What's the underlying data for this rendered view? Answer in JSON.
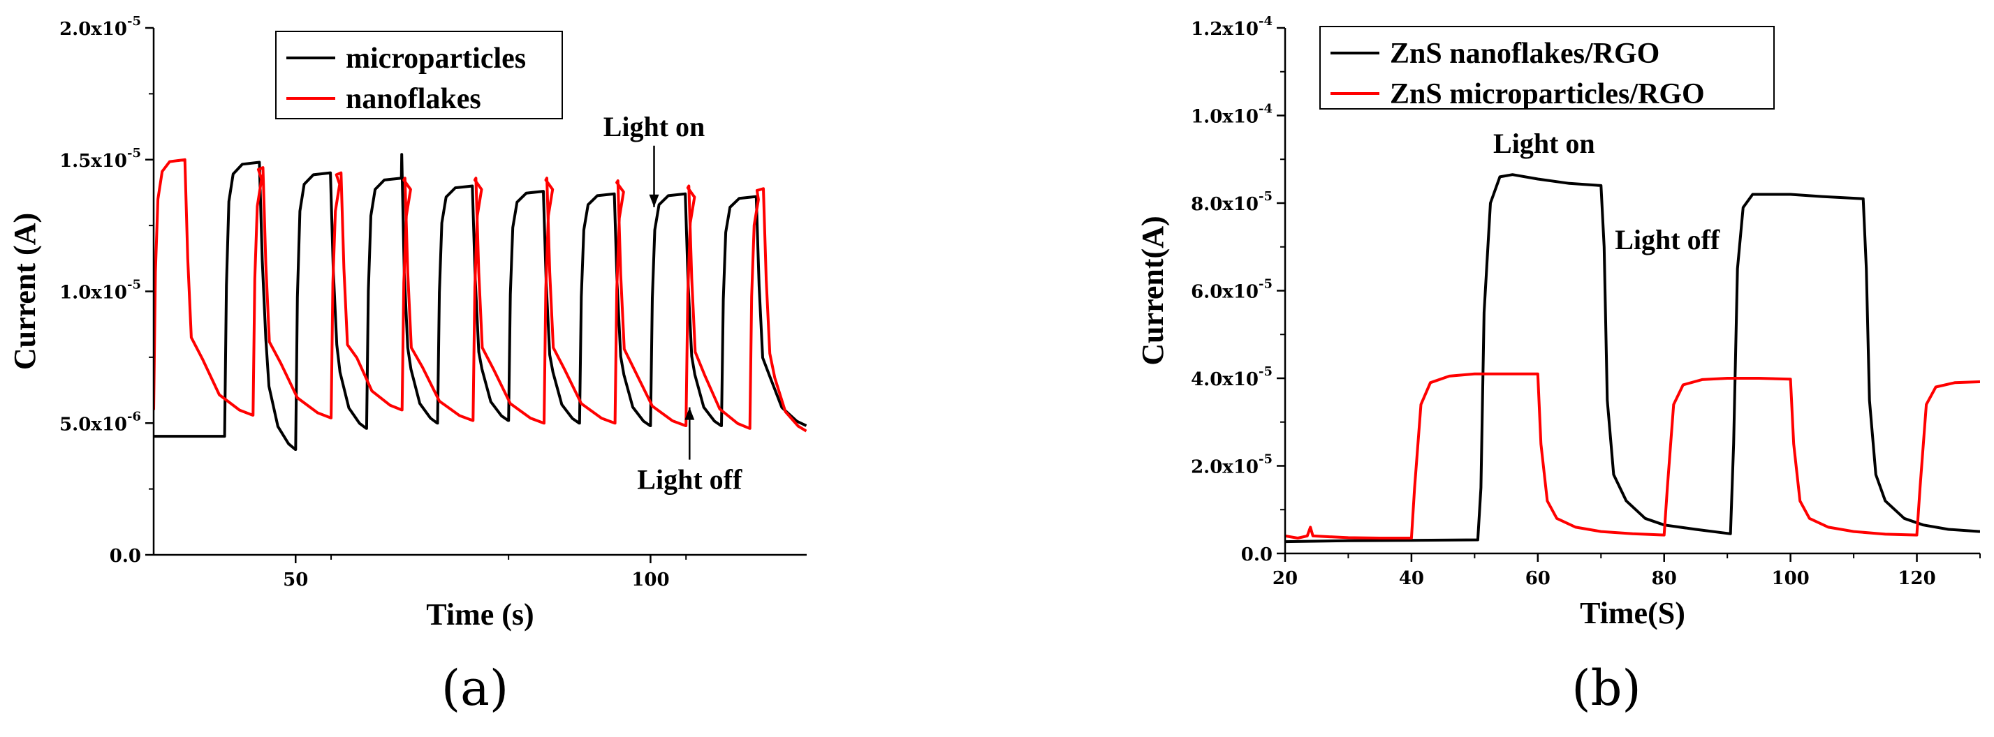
{
  "chart_data": [
    {
      "id": "a",
      "type": "line",
      "panel_label": "(a)",
      "xlabel": "Time (s)",
      "ylabel": "Current (A)",
      "xlim": [
        30,
        122
      ],
      "ylim": [
        0,
        2e-05
      ],
      "x_ticks": [
        {
          "v": 50,
          "label": "50"
        },
        {
          "v": 100,
          "label": "100"
        }
      ],
      "y_ticks": [
        {
          "v": 0,
          "m": "0.0",
          "e": ""
        },
        {
          "v": 5e-06,
          "m": "5.0x10",
          "e": "-6"
        },
        {
          "v": 1e-05,
          "m": "1.0x10",
          "e": "-5"
        },
        {
          "v": 1.5e-05,
          "m": "1.5x10",
          "e": "-5"
        },
        {
          "v": 2e-05,
          "m": "2.0x10",
          "e": "-5"
        }
      ],
      "legend": {
        "placement": "top-center"
      },
      "annotations": [
        {
          "text": "Light on",
          "x": 100.5,
          "y": 1.59e-05,
          "arrow_to": [
            100.5,
            1.32e-05
          ]
        },
        {
          "text": "Light off",
          "x": 105.5,
          "y": 2.5e-06,
          "arrow_to": [
            105.5,
            5.6e-06
          ]
        }
      ],
      "series": [
        {
          "name": "microparticles",
          "color": "#000000",
          "cycle": {
            "on_times": [
              40,
              50,
              60,
              70,
              80,
              90,
              100,
              110
            ],
            "on_duration": 5,
            "peaks": [
              1.49e-05,
              1.45e-05,
              1.43e-05,
              1.4e-05,
              1.38e-05,
              1.37e-05,
              1.37e-05,
              1.36e-05
            ],
            "dark": [
              4e-06,
              4.8e-06,
              5e-06,
              5.1e-06,
              5e-06,
              4.9e-06,
              4.9e-06,
              4.9e-06
            ],
            "start": [
              30,
              4.5e-06
            ],
            "spike": [
              65,
              1.52e-05
            ],
            "end": 122
          }
        },
        {
          "name": "nanoflakes",
          "color": "#ff0000",
          "cycle": {
            "on_times": [
              30,
              44,
              55,
              65,
              75,
              85,
              95,
              105,
              114
            ],
            "off_times": [
              34.5,
              45.5,
              56.5,
              65.5,
              75.5,
              85.5,
              95.5,
              105.5,
              116
            ],
            "peaks": [
              1.5e-05,
              1.47e-05,
              1.45e-05,
              1.43e-05,
              1.43e-05,
              1.43e-05,
              1.42e-05,
              1.4e-05,
              1.39e-05
            ],
            "dark": [
              5.3e-06,
              5.2e-06,
              5.5e-06,
              5.1e-06,
              5e-06,
              5e-06,
              4.9e-06,
              4.8e-06,
              4.7e-06
            ],
            "start": [
              30,
              5.5e-06
            ],
            "end": 122
          }
        }
      ]
    },
    {
      "id": "b",
      "type": "line",
      "panel_label": "(b)",
      "xlabel": "Time(S)",
      "ylabel": "Current(A)",
      "xlim": [
        20,
        130
      ],
      "ylim": [
        0,
        0.00012
      ],
      "x_ticks": [
        {
          "v": 20,
          "label": "20"
        },
        {
          "v": 40,
          "label": "40"
        },
        {
          "v": 60,
          "label": "60"
        },
        {
          "v": 80,
          "label": "80"
        },
        {
          "v": 100,
          "label": "100"
        },
        {
          "v": 120,
          "label": "120"
        }
      ],
      "y_ticks": [
        {
          "v": 0,
          "m": "0.0",
          "e": ""
        },
        {
          "v": 2e-05,
          "m": "2.0x10",
          "e": "-5"
        },
        {
          "v": 4e-05,
          "m": "4.0x10",
          "e": "-5"
        },
        {
          "v": 6e-05,
          "m": "6.0x10",
          "e": "-5"
        },
        {
          "v": 8e-05,
          "m": "8.0x10",
          "e": "-5"
        },
        {
          "v": 0.0001,
          "m": "1.0x10",
          "e": "-4"
        },
        {
          "v": 0.00012,
          "m": "1.2x10",
          "e": "-4"
        }
      ],
      "legend": {
        "placement": "top-left"
      },
      "annotations": [
        {
          "text": "Light on",
          "x": 61,
          "y": 9.15e-05
        },
        {
          "text": "Light off",
          "x": 80.5,
          "y": 6.95e-05
        }
      ],
      "series": [
        {
          "name": "ZnS nanoflakes/RGO",
          "color": "#000000",
          "points": [
            [
              20,
              2.7e-06
            ],
            [
              30,
              2.9e-06
            ],
            [
              40,
              3e-06
            ],
            [
              50.5,
              3.1e-06
            ],
            [
              51,
              1.5e-05
            ],
            [
              51.5,
              5.5e-05
            ],
            [
              52.5,
              8e-05
            ],
            [
              54,
              8.6e-05
            ],
            [
              56,
              8.65e-05
            ],
            [
              60,
              8.55e-05
            ],
            [
              65,
              8.45e-05
            ],
            [
              70,
              8.4e-05
            ],
            [
              70.5,
              7e-05
            ],
            [
              71,
              3.5e-05
            ],
            [
              72,
              1.8e-05
            ],
            [
              74,
              1.2e-05
            ],
            [
              77,
              8e-06
            ],
            [
              80,
              6.5e-06
            ],
            [
              85,
              5.5e-06
            ],
            [
              90.5,
              4.5e-06
            ],
            [
              91,
              2.5e-05
            ],
            [
              91.6,
              6.5e-05
            ],
            [
              92.5,
              7.9e-05
            ],
            [
              94,
              8.2e-05
            ],
            [
              100,
              8.2e-05
            ],
            [
              105,
              8.15e-05
            ],
            [
              111.5,
              8.1e-05
            ],
            [
              112,
              6.5e-05
            ],
            [
              112.5,
              3.5e-05
            ],
            [
              113.5,
              1.8e-05
            ],
            [
              115,
              1.2e-05
            ],
            [
              118,
              8e-06
            ],
            [
              121,
              6.5e-06
            ],
            [
              125,
              5.5e-06
            ],
            [
              130,
              5e-06
            ]
          ]
        },
        {
          "name": "ZnS microparticles/RGO",
          "color": "#ff0000",
          "points": [
            [
              20,
              4e-06
            ],
            [
              22,
              3.5e-06
            ],
            [
              23.5,
              4e-06
            ],
            [
              24,
              6e-06
            ],
            [
              24.4,
              4e-06
            ],
            [
              30,
              3.6e-06
            ],
            [
              35,
              3.5e-06
            ],
            [
              40,
              3.5e-06
            ],
            [
              40.5,
              1.5e-05
            ],
            [
              41.5,
              3.4e-05
            ],
            [
              43,
              3.9e-05
            ],
            [
              46,
              4.05e-05
            ],
            [
              50,
              4.1e-05
            ],
            [
              55,
              4.1e-05
            ],
            [
              60,
              4.1e-05
            ],
            [
              60.5,
              2.5e-05
            ],
            [
              61.5,
              1.2e-05
            ],
            [
              63,
              8e-06
            ],
            [
              66,
              6e-06
            ],
            [
              70,
              5e-06
            ],
            [
              75,
              4.5e-06
            ],
            [
              80,
              4.2e-06
            ],
            [
              80.5,
              1.5e-05
            ],
            [
              81.5,
              3.4e-05
            ],
            [
              83,
              3.85e-05
            ],
            [
              86,
              3.97e-05
            ],
            [
              90,
              4e-05
            ],
            [
              95,
              4e-05
            ],
            [
              100,
              3.98e-05
            ],
            [
              100.5,
              2.5e-05
            ],
            [
              101.5,
              1.2e-05
            ],
            [
              103,
              8e-06
            ],
            [
              106,
              6e-06
            ],
            [
              110,
              5e-06
            ],
            [
              115,
              4.4e-06
            ],
            [
              120,
              4.2e-06
            ],
            [
              120.5,
              1.5e-05
            ],
            [
              121.5,
              3.4e-05
            ],
            [
              123,
              3.8e-05
            ],
            [
              126,
              3.9e-05
            ],
            [
              130,
              3.92e-05
            ]
          ]
        }
      ]
    }
  ]
}
